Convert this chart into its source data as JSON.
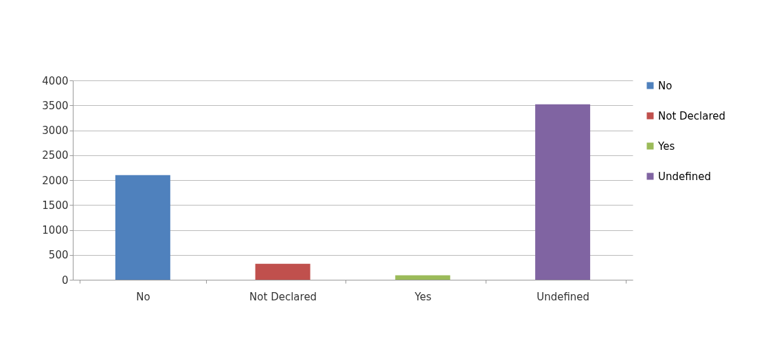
{
  "chart_data": {
    "type": "bar",
    "categories": [
      "No",
      "Not Declared",
      "Yes",
      "Undefined"
    ],
    "series": [
      {
        "name": "No",
        "color": "#4f81bd",
        "values": [
          2100,
          null,
          null,
          null
        ]
      },
      {
        "name": "Not Declared",
        "color": "#c0504d",
        "values": [
          null,
          320,
          null,
          null
        ]
      },
      {
        "name": "Yes",
        "color": "#9bbb59",
        "values": [
          null,
          null,
          90,
          null
        ]
      },
      {
        "name": "Undefined",
        "color": "#8064a2",
        "values": [
          null,
          null,
          null,
          3520
        ]
      }
    ],
    "ylim": [
      0,
      4000
    ],
    "yticks": [
      0,
      500,
      1000,
      1500,
      2000,
      2500,
      3000,
      3500,
      4000
    ],
    "grid": "y",
    "legend": "right"
  }
}
